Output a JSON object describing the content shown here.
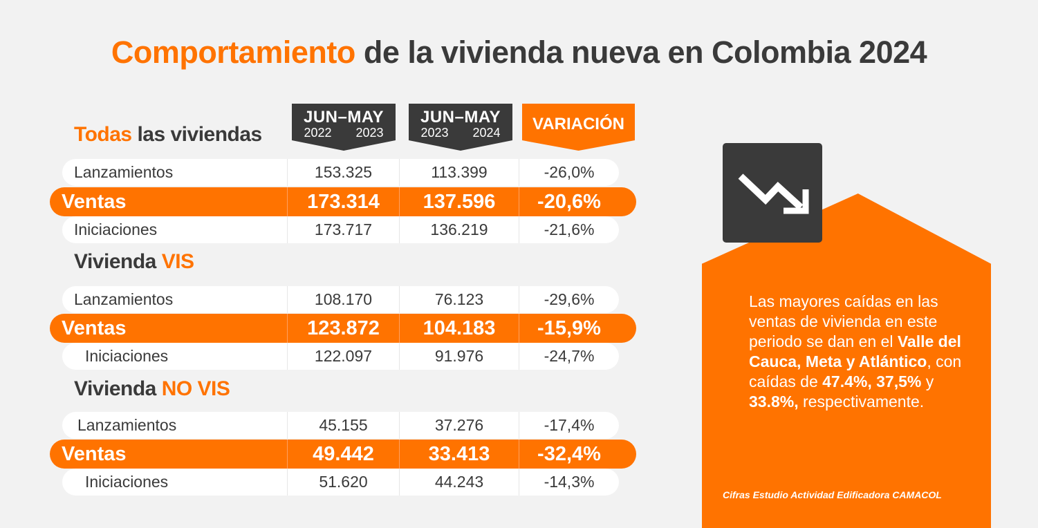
{
  "title": {
    "highlight": "Comportamiento",
    "rest": " de la vivienda nueva en Colombia 2024"
  },
  "headers": [
    {
      "top": "JUN–MAY",
      "from": "2022",
      "to": "2023"
    },
    {
      "top": "JUN–MAY",
      "from": "2023",
      "to": "2024"
    },
    {
      "label": "VARIACIÓN"
    }
  ],
  "sections": [
    {
      "title_a": "Todas",
      "title_b": " las viviendas",
      "rows": [
        {
          "label": "Lanzamientos",
          "v1": "153.325",
          "v2": "113.399",
          "var": "-26,0%"
        },
        {
          "label": "Ventas",
          "v1": "173.314",
          "v2": "137.596",
          "var": "-20,6%"
        },
        {
          "label": "Iniciaciones",
          "v1": "173.717",
          "v2": "136.219",
          "var": "-21,6%"
        }
      ]
    },
    {
      "title_a": "Vivienda ",
      "title_b": "VIS",
      "rows": [
        {
          "label": "Lanzamientos",
          "v1": "108.170",
          "v2": "76.123",
          "var": "-29,6%"
        },
        {
          "label": "Ventas",
          "v1": "123.872",
          "v2": "104.183",
          "var": "-15,9%"
        },
        {
          "label": "Iniciaciones",
          "v1": "122.097",
          "v2": "91.976",
          "var": "-24,7%"
        }
      ]
    },
    {
      "title_a": "Vivienda ",
      "title_b": "NO VIS",
      "rows": [
        {
          "label": "Lanzamientos",
          "v1": "45.155",
          "v2": "37.276",
          "var": "-17,4%"
        },
        {
          "label": "Ventas",
          "v1": "49.442",
          "v2": "33.413",
          "var": "-32,4%"
        },
        {
          "label": "Iniciaciones",
          "v1": "51.620",
          "v2": "44.243",
          "var": "-14,3%"
        }
      ]
    }
  ],
  "note": {
    "p1": "Las mayores caídas en las ventas de vivienda en este periodo se dan en el ",
    "b1": "Valle del Cauca, Meta y Atlántico",
    "p2": ", con caídas de ",
    "b2": "47.4%, 37,5%",
    "p3": " y ",
    "b3": "33.8%,",
    "p4": " respectivamente."
  },
  "source": "Cifras Estudio Actividad Edificadora CAMACOL",
  "icon": "trend-down-icon",
  "colors": {
    "accent": "#ff7300",
    "dark": "#3a3a3a",
    "background": "#f2f2f2"
  }
}
